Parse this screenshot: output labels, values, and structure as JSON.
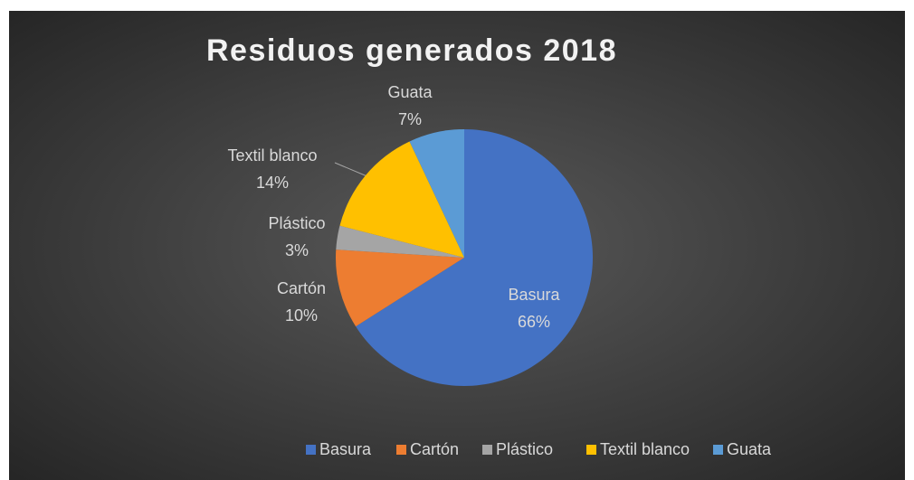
{
  "chart_data": {
    "type": "pie",
    "title": "Residuos generados 2018",
    "categories": [
      "Basura",
      "Cartón",
      "Plástico",
      "Textil blanco",
      "Guata"
    ],
    "values": [
      66,
      10,
      3,
      14,
      7
    ],
    "value_labels": [
      "66%",
      "10%",
      "3%",
      "14%",
      "7%"
    ],
    "colors": [
      "#4472c4",
      "#ed7d31",
      "#a5a5a5",
      "#ffc000",
      "#5b9bd5"
    ],
    "legend": "bottom"
  }
}
